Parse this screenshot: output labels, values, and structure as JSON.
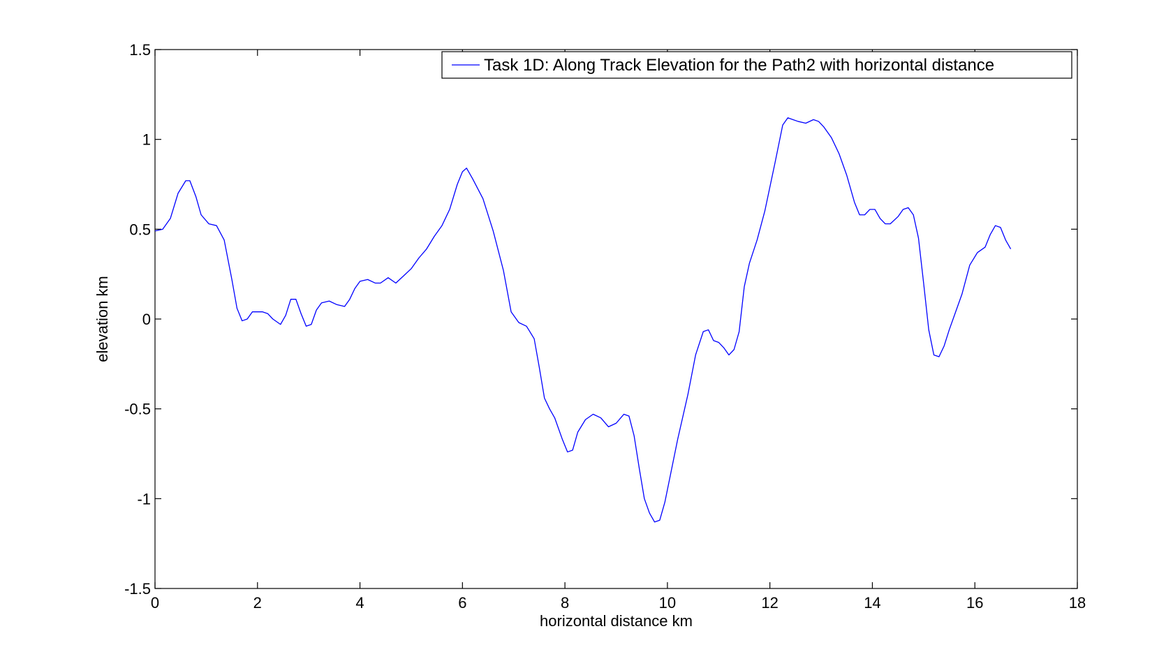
{
  "chart_data": {
    "type": "line",
    "title": "",
    "xlabel": "horizontal distance km",
    "ylabel": "elevation km",
    "xlim": [
      0,
      18
    ],
    "ylim": [
      -1.5,
      1.5
    ],
    "xticks": [
      0,
      2,
      4,
      6,
      8,
      10,
      12,
      14,
      16,
      18
    ],
    "yticks": [
      -1.5,
      -1,
      -0.5,
      0,
      0.5,
      1,
      1.5
    ],
    "xtick_labels": [
      "0",
      "2",
      "4",
      "6",
      "8",
      "10",
      "12",
      "14",
      "16",
      "18"
    ],
    "ytick_labels": [
      "-1.5",
      "-1",
      "-0.5",
      "0",
      "0.5",
      "1",
      "1.5"
    ],
    "grid": false,
    "legend_position": "top-right",
    "colors": {
      "series": "#0000ff",
      "axes": "#000000",
      "background": "#ffffff"
    },
    "series": [
      {
        "name": "Task 1D: Along Track Elevation for the Path2 with horizontal distance",
        "x": [
          0,
          0.15,
          0.3,
          0.45,
          0.6,
          0.68,
          0.8,
          0.9,
          1.05,
          1.2,
          1.35,
          1.5,
          1.6,
          1.7,
          1.8,
          1.9,
          2.0,
          2.1,
          2.2,
          2.3,
          2.45,
          2.55,
          2.65,
          2.75,
          2.85,
          2.95,
          3.05,
          3.15,
          3.25,
          3.4,
          3.55,
          3.7,
          3.8,
          3.9,
          4.0,
          4.15,
          4.3,
          4.4,
          4.55,
          4.7,
          4.85,
          5.0,
          5.15,
          5.3,
          5.45,
          5.6,
          5.75,
          5.9,
          6.0,
          6.08,
          6.2,
          6.4,
          6.6,
          6.8,
          6.95,
          7.1,
          7.25,
          7.4,
          7.5,
          7.6,
          7.7,
          7.8,
          7.95,
          8.05,
          8.15,
          8.25,
          8.4,
          8.55,
          8.7,
          8.85,
          9.0,
          9.15,
          9.25,
          9.35,
          9.45,
          9.55,
          9.65,
          9.75,
          9.85,
          9.95,
          10.05,
          10.2,
          10.4,
          10.55,
          10.7,
          10.8,
          10.9,
          11.0,
          11.1,
          11.2,
          11.3,
          11.4,
          11.5,
          11.6,
          11.75,
          11.9,
          12.1,
          12.25,
          12.35,
          12.45,
          12.55,
          12.7,
          12.85,
          12.95,
          13.05,
          13.2,
          13.35,
          13.5,
          13.65,
          13.75,
          13.85,
          13.95,
          14.05,
          14.15,
          14.25,
          14.35,
          14.5,
          14.6,
          14.7,
          14.8,
          14.9,
          15.0,
          15.1,
          15.2,
          15.3,
          15.4,
          15.5,
          15.6,
          15.75,
          15.9,
          16.05,
          16.2,
          16.3,
          16.4,
          16.5,
          16.6,
          16.7
        ],
        "y": [
          0.49,
          0.5,
          0.56,
          0.7,
          0.77,
          0.77,
          0.68,
          0.58,
          0.53,
          0.52,
          0.44,
          0.22,
          0.06,
          -0.01,
          0.0,
          0.04,
          0.04,
          0.04,
          0.03,
          0.0,
          -0.03,
          0.02,
          0.11,
          0.11,
          0.03,
          -0.04,
          -0.03,
          0.05,
          0.09,
          0.1,
          0.08,
          0.07,
          0.11,
          0.17,
          0.21,
          0.22,
          0.2,
          0.2,
          0.23,
          0.2,
          0.24,
          0.28,
          0.34,
          0.39,
          0.46,
          0.52,
          0.61,
          0.75,
          0.82,
          0.84,
          0.78,
          0.67,
          0.49,
          0.27,
          0.04,
          -0.02,
          -0.04,
          -0.11,
          -0.27,
          -0.44,
          -0.5,
          -0.55,
          -0.67,
          -0.74,
          -0.73,
          -0.63,
          -0.56,
          -0.53,
          -0.55,
          -0.6,
          -0.58,
          -0.53,
          -0.54,
          -0.65,
          -0.83,
          -1.0,
          -1.08,
          -1.13,
          -1.12,
          -1.02,
          -0.88,
          -0.67,
          -0.42,
          -0.2,
          -0.07,
          -0.06,
          -0.12,
          -0.13,
          -0.16,
          -0.2,
          -0.17,
          -0.07,
          0.18,
          0.31,
          0.44,
          0.6,
          0.87,
          1.08,
          1.12,
          1.11,
          1.1,
          1.09,
          1.11,
          1.1,
          1.07,
          1.01,
          0.92,
          0.8,
          0.65,
          0.58,
          0.58,
          0.61,
          0.61,
          0.56,
          0.53,
          0.53,
          0.57,
          0.61,
          0.62,
          0.58,
          0.45,
          0.2,
          -0.06,
          -0.2,
          -0.21,
          -0.15,
          -0.06,
          0.02,
          0.14,
          0.3,
          0.37,
          0.4,
          0.47,
          0.52,
          0.51,
          0.44,
          0.39
        ]
      }
    ]
  }
}
